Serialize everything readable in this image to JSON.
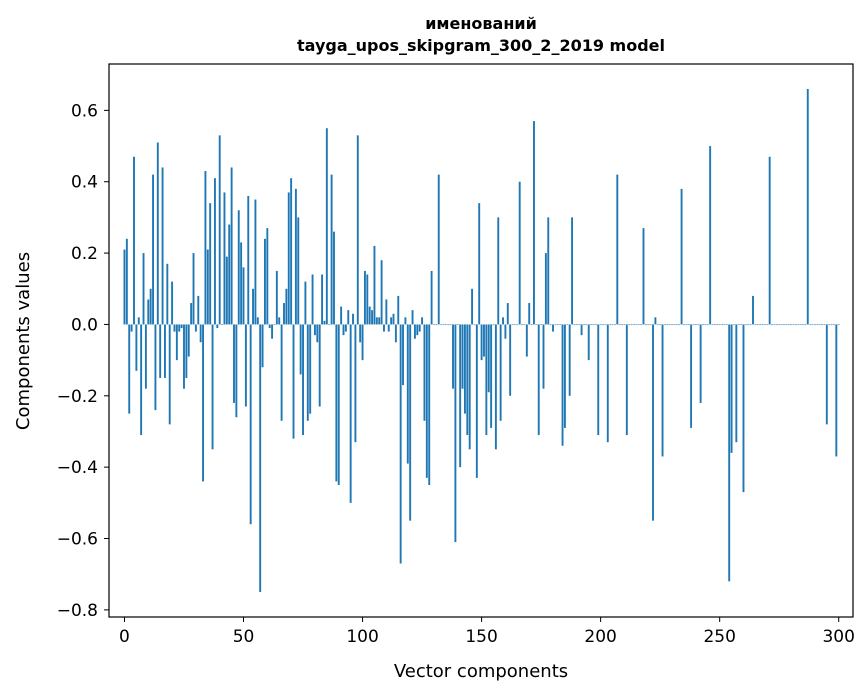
{
  "chart_data": {
    "type": "bar",
    "title_line1": "именований",
    "title_line2": "tayga_upos_skipgram_300_2_2019 model",
    "xlabel": "Vector components",
    "ylabel": "Components values",
    "xlim": [
      -6.5,
      306
    ],
    "ylim": [
      -0.82,
      0.73
    ],
    "x_ticks": [
      0,
      50,
      100,
      150,
      200,
      250,
      300
    ],
    "x_tick_labels": [
      "0",
      "50",
      "100",
      "150",
      "200",
      "250",
      "300"
    ],
    "y_ticks": [
      -0.8,
      -0.6,
      -0.4,
      -0.2,
      0.0,
      0.2,
      0.4,
      0.6
    ],
    "y_tick_labels": [
      "−0.8",
      "−0.6",
      "−0.4",
      "−0.2",
      "0.0",
      "0.2",
      "0.4",
      "0.6"
    ],
    "bar_color": "#1f77b4",
    "values": [
      0.21,
      0.24,
      -0.25,
      -0.02,
      0.47,
      -0.13,
      0.02,
      -0.31,
      0.2,
      -0.18,
      0.07,
      0.1,
      0.42,
      -0.24,
      0.51,
      -0.15,
      0.44,
      -0.15,
      0.17,
      -0.28,
      0.12,
      -0.02,
      -0.1,
      -0.02,
      -0.01,
      -0.18,
      -0.15,
      -0.09,
      0.06,
      0.2,
      -0.02,
      0.08,
      -0.05,
      -0.44,
      0.43,
      0.21,
      0.34,
      -0.35,
      0.41,
      -0.01,
      0.53,
      0.0,
      0.37,
      0.19,
      0.28,
      0.44,
      -0.22,
      -0.26,
      0.32,
      0.23,
      0.16,
      -0.23,
      0.36,
      -0.56,
      0.1,
      0.35,
      0.02,
      -0.75,
      -0.12,
      0.24,
      0.27,
      -0.01,
      -0.04,
      0.0,
      0.15,
      0.02,
      -0.27,
      0.06,
      0.1,
      0.37,
      0.41,
      -0.32,
      0.38,
      0.3,
      -0.14,
      -0.31,
      0.12,
      -0.27,
      -0.25,
      0.14,
      -0.03,
      -0.05,
      -0.23,
      0.14,
      0.01,
      0.55,
      0.0,
      0.42,
      0.26,
      -0.44,
      -0.45,
      0.05,
      -0.03,
      -0.02,
      0.04,
      -0.5,
      0.03,
      -0.33,
      0.53,
      -0.05,
      -0.1,
      0.15,
      0.14,
      0.05,
      0.04,
      0.22,
      0.02,
      0.02,
      0.18,
      -0.02,
      0.07,
      -0.02,
      0.02,
      0.03,
      -0.05,
      0.08,
      -0.67,
      -0.17,
      0.02,
      -0.39,
      -0.55,
      0.04,
      -0.04,
      -0.03,
      -0.02,
      0.02,
      -0.27,
      -0.43,
      -0.45,
      0.15,
      0.0,
      0.0,
      0.42,
      0.0,
      0.0,
      0.0,
      0.0,
      0.0,
      -0.18,
      -0.61,
      0.0,
      -0.4,
      -0.18,
      -0.25,
      -0.31,
      -0.35,
      0.1,
      0.0,
      -0.43,
      0.34,
      -0.1,
      -0.09,
      -0.31,
      -0.19,
      -0.29,
      0.0,
      -0.35,
      0.3,
      -0.27,
      0.02,
      -0.04,
      0.06,
      -0.2,
      0.0,
      0.0,
      0.0,
      0.4,
      0.0,
      0.0,
      -0.09,
      0.06,
      0.0,
      0.57,
      0.0,
      -0.31,
      0.0,
      -0.18,
      0.2,
      0.3,
      0.0,
      -0.02,
      0.0,
      0.0,
      0.0,
      -0.34,
      -0.29,
      0.0,
      -0.2,
      0.3,
      0.0,
      0.0,
      0.0,
      -0.03,
      0.0,
      0.0,
      -0.1,
      0.0,
      0.0,
      0.0,
      -0.31,
      0.0,
      0.0,
      0.0,
      -0.33,
      0.0,
      0.0,
      0.0,
      0.42,
      0.0,
      0.0,
      0.0,
      -0.31,
      0.0,
      0.0,
      0.0,
      0.0,
      0.0,
      0.0,
      0.27,
      0.0,
      0.0,
      0.0,
      -0.55,
      0.02,
      0.0,
      0.0,
      -0.37,
      0.0,
      0.0,
      0.0,
      0.0,
      0.0,
      0.0,
      0.0,
      0.38,
      0.0,
      0.0,
      0.0,
      -0.29,
      0.0,
      0.0,
      0.0,
      -0.22,
      0.0,
      0.0,
      0.0,
      0.5,
      0.0,
      0.0,
      0.0,
      0.0,
      0.0,
      0.0,
      0.0,
      -0.72,
      -0.36,
      0.0,
      -0.33,
      0.0,
      0.0,
      -0.47,
      0.0,
      0.0,
      0.0,
      0.08,
      0.0,
      0.0,
      0.0,
      0.0,
      0.0,
      0.0,
      0.47,
      0.0,
      0.0,
      0.0,
      0.0,
      0.0,
      0.0,
      0.0,
      0.0,
      0.0,
      0.0,
      0.0,
      0.0,
      0.0,
      0.0,
      0.0,
      0.66,
      0.0,
      0.0,
      0.0,
      0.0,
      0.0,
      0.0,
      0.0,
      -0.28,
      0.0,
      0.0,
      0.0,
      -0.37,
      0.0
    ]
  }
}
